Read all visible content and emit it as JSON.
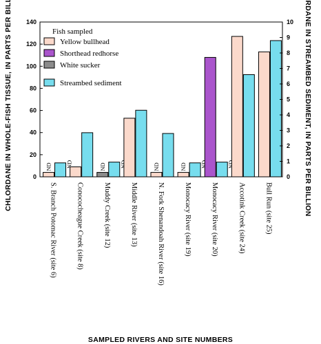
{
  "chart_data": {
    "type": "bar",
    "ylabel": "CHLORDANE IN WHOLE-FISH TISSUE, IN PARTS PER BILLION",
    "y2label": "CHLORDANE IN STREAMBED SEDIMENT, IN PARTS PER BILLION",
    "xlabel": "SAMPLED RIVERS AND SITE NUMBERS",
    "ylim": [
      0,
      140
    ],
    "y2lim": [
      0,
      10
    ],
    "yticks": [
      "0",
      "20",
      "40",
      "60",
      "80",
      "100",
      "120",
      "140"
    ],
    "y2ticks": [
      "0",
      "1",
      "2",
      "3",
      "4",
      "5",
      "6",
      "7",
      "8",
      "9",
      "10"
    ],
    "legend_title": "Fish sampled",
    "legend_placement": "top-left",
    "nd_label": "ND",
    "colors": {
      "Yellow bullhead": "#fbd9cb",
      "Shorthead redhorse": "#aa55cc",
      "White sucker": "#8c8c8c",
      "Streambed sediment": "#77ddee"
    },
    "fish_series": [
      {
        "name": "Yellow bullhead"
      },
      {
        "name": "Shorthead redhorse"
      },
      {
        "name": "White sucker"
      }
    ],
    "sediment_series": {
      "name": "Streambed sediment",
      "axis": "right"
    },
    "categories": [
      {
        "label": "S. Branch Potomac River (site 6)",
        "fish": "Yellow bullhead",
        "fish_value": 4,
        "fish_nd": true,
        "sediment_value": 0.9,
        "sediment_nd": true
      },
      {
        "label": "Conococheague Creek (site 8)",
        "fish": "Yellow bullhead",
        "fish_value": 9,
        "fish_nd": false,
        "sediment_value": 2.85,
        "sediment_nd": false
      },
      {
        "label": "Muddy Creek (site 12)",
        "fish": "White sucker",
        "fish_value": 4,
        "fish_nd": true,
        "sediment_value": 0.95,
        "sediment_nd": true
      },
      {
        "label": "Middle River (site 13)",
        "fish": "Yellow bullhead",
        "fish_value": 53,
        "fish_nd": false,
        "sediment_value": 4.3,
        "sediment_nd": false
      },
      {
        "label": "N. Fork Shenandoah River (site 16)",
        "fish": "Yellow bullhead",
        "fish_value": 4,
        "fish_nd": true,
        "sediment_value": 2.8,
        "sediment_nd": false
      },
      {
        "label": "Monocacy River (site 19)",
        "fish": "Yellow bullhead",
        "fish_value": 4,
        "fish_nd": true,
        "sediment_value": 0.9,
        "sediment_nd": true
      },
      {
        "label": "Monocacy River (site 20)",
        "fish": "Shorthead redhorse",
        "fish_value": 108,
        "fish_nd": false,
        "sediment_value": 0.95,
        "sediment_nd": true
      },
      {
        "label": "Accotink Creek (site 24)",
        "fish": "Yellow bullhead",
        "fish_value": 127,
        "fish_nd": false,
        "sediment_value": 6.6,
        "sediment_nd": false
      },
      {
        "label": "Bull Run (site 25)",
        "fish": "Yellow bullhead",
        "fish_value": 113,
        "fish_nd": false,
        "sediment_value": 8.8,
        "sediment_nd": false
      }
    ]
  }
}
